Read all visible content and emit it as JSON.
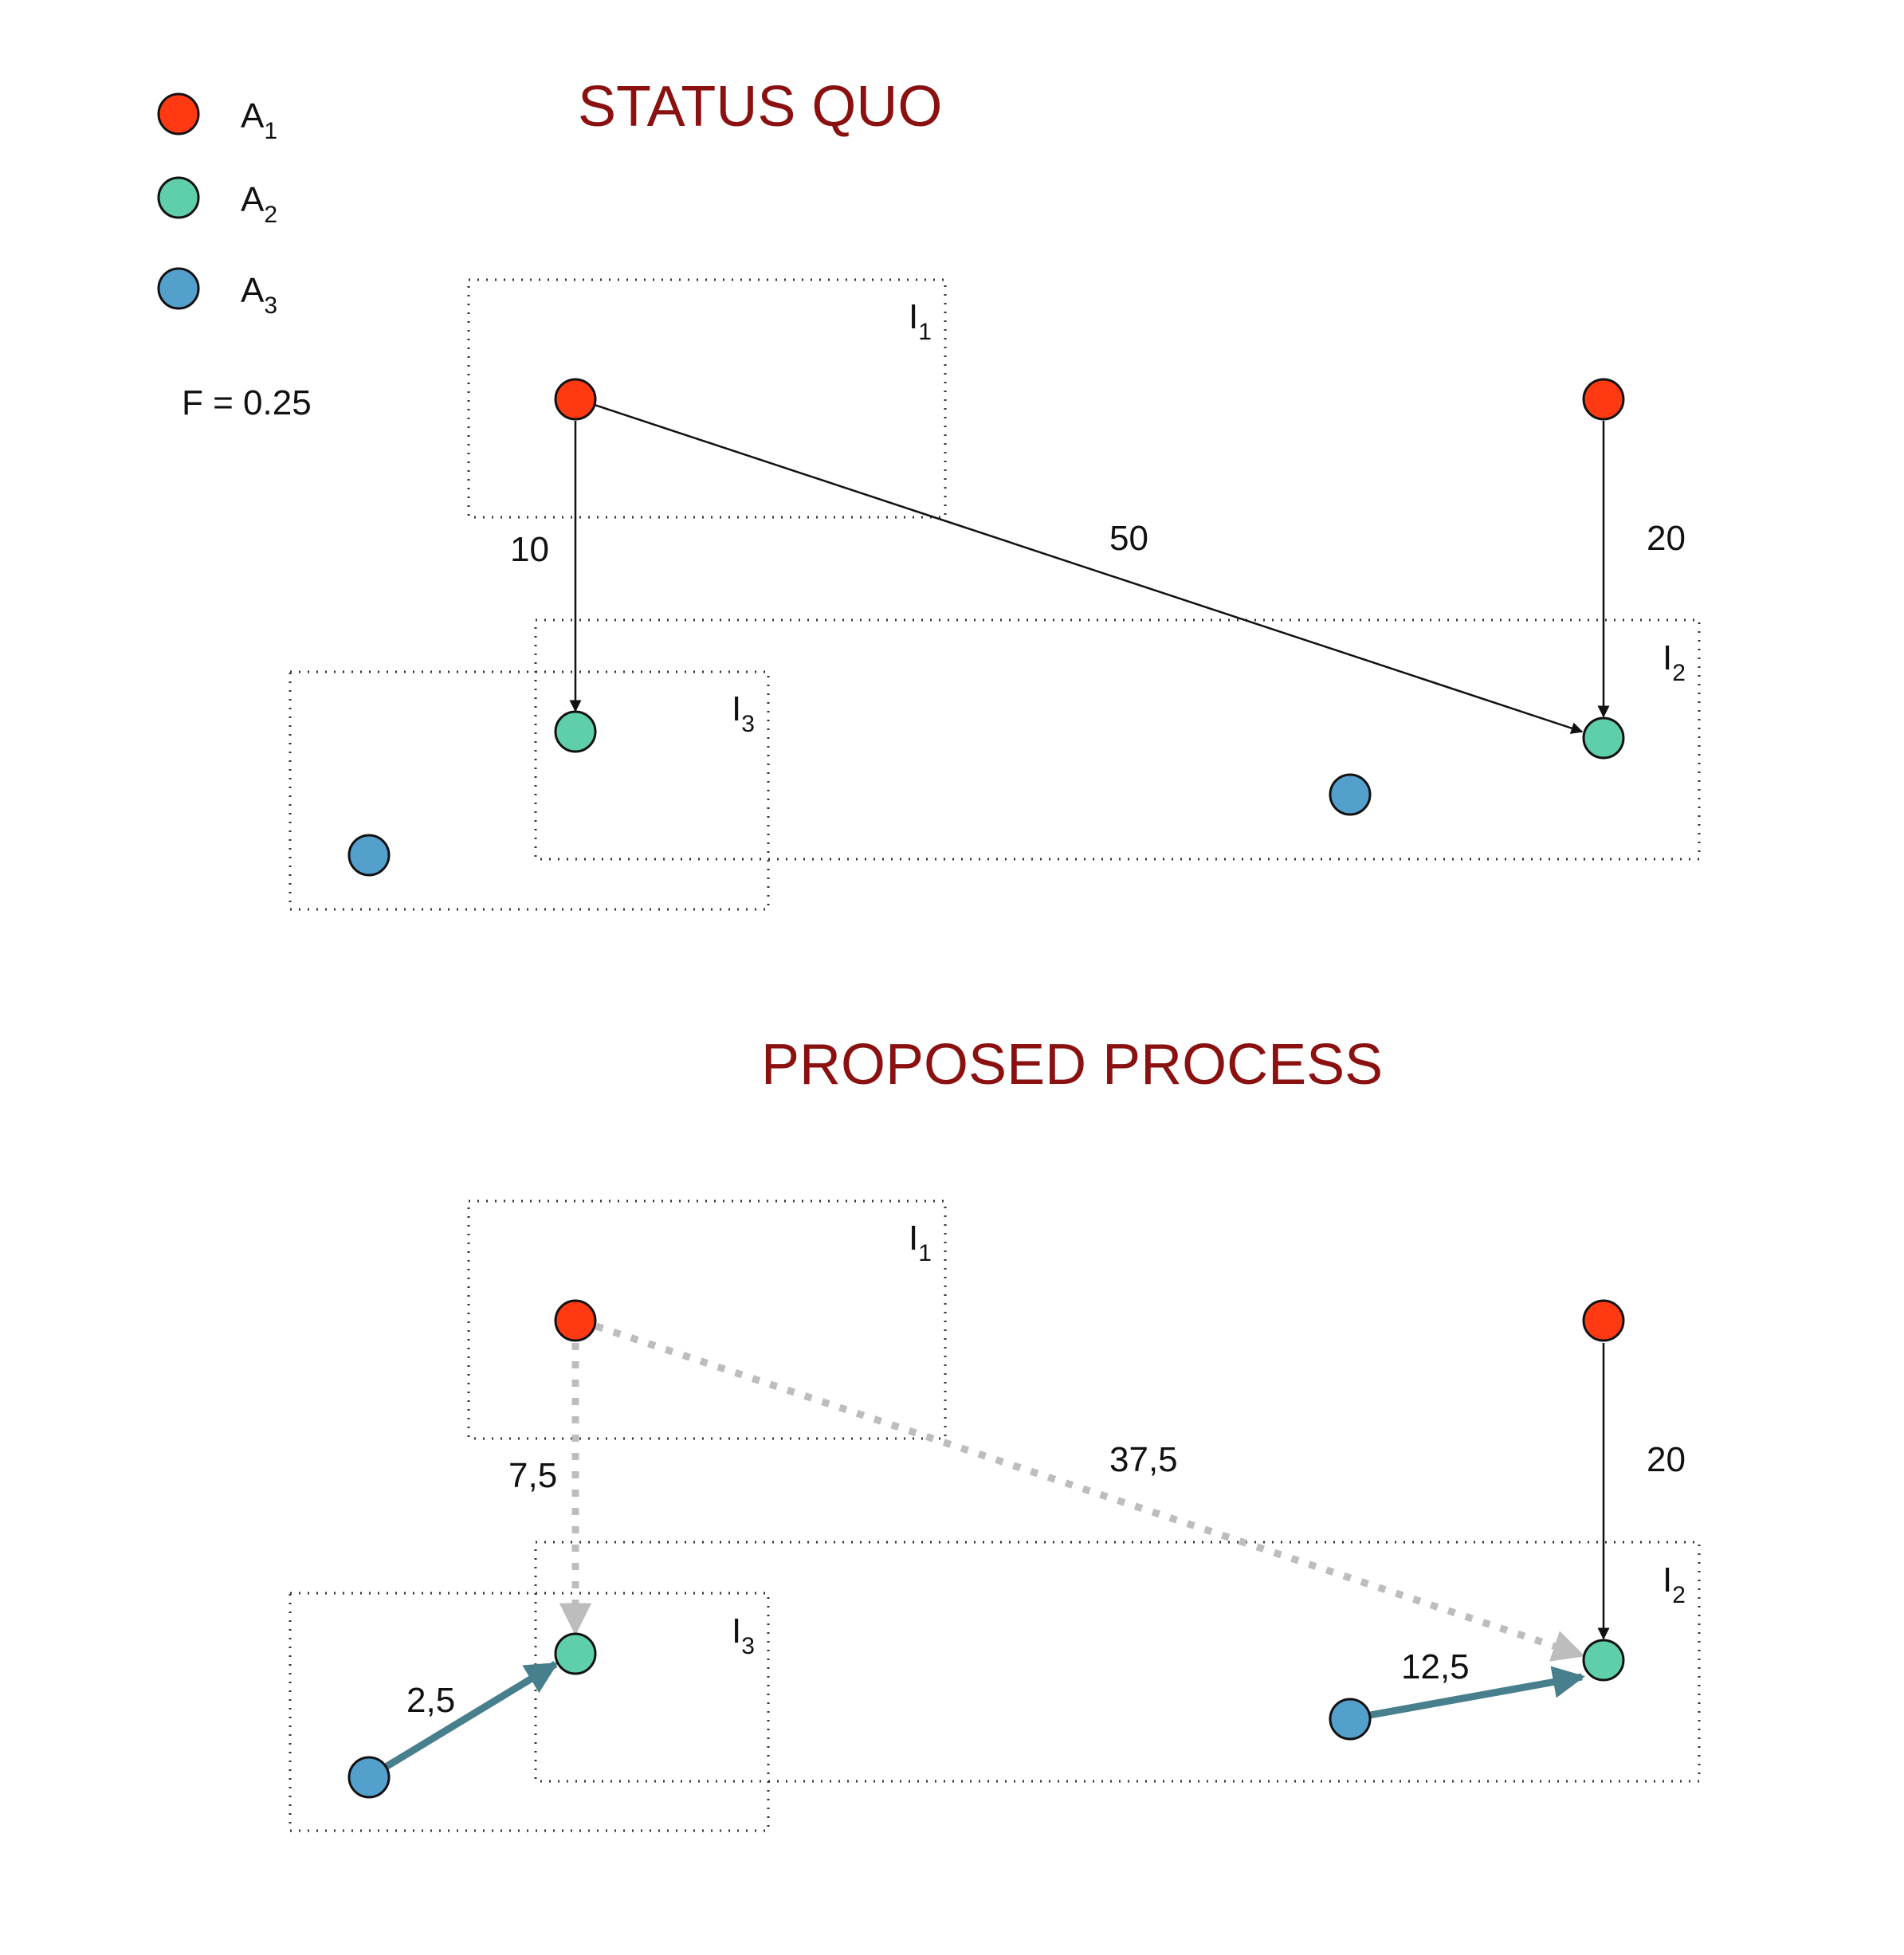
{
  "legend": {
    "items": [
      {
        "base": "A",
        "sub": "1",
        "color": "#ff3a12"
      },
      {
        "base": "A",
        "sub": "2",
        "color": "#5ecfaa"
      },
      {
        "base": "A",
        "sub": "3",
        "color": "#54a0cc"
      }
    ],
    "parameter": "F = 0.25"
  },
  "status_quo": {
    "title": "STATUS QUO",
    "regions": [
      {
        "base": "I",
        "sub": "1"
      },
      {
        "base": "I",
        "sub": "2"
      },
      {
        "base": "I",
        "sub": "3"
      }
    ],
    "flows": [
      {
        "label": "10",
        "from": "A1 (I1)",
        "to": "A2 (I3)"
      },
      {
        "label": "50",
        "from": "A1 (I1)",
        "to": "A2 (I2)"
      },
      {
        "label": "20",
        "from": "A1",
        "to": "A2 (I2)"
      }
    ]
  },
  "proposed": {
    "title": "PROPOSED PROCESS",
    "regions": [
      {
        "base": "I",
        "sub": "1"
      },
      {
        "base": "I",
        "sub": "2"
      },
      {
        "base": "I",
        "sub": "3"
      }
    ],
    "flows": [
      {
        "label": "7,5",
        "from": "A1 (I1)",
        "to": "A2 (I3)",
        "style": "dotted"
      },
      {
        "label": "37,5",
        "from": "A1 (I1)",
        "to": "A2 (I2)",
        "style": "dotted"
      },
      {
        "label": "20",
        "from": "A1",
        "to": "A2 (I2)",
        "style": "solid"
      },
      {
        "label": "2,5",
        "from": "A3",
        "to": "A2 (I3)",
        "style": "bold"
      },
      {
        "label": "12,5",
        "from": "A3",
        "to": "A2 (I2)",
        "style": "bold"
      }
    ]
  },
  "colors": {
    "a1": "#ff3a12",
    "a2": "#5ecfaa",
    "a3": "#54a0cc",
    "bold_arrow": "#477f8c",
    "dotted_arrow": "#bdbdbd",
    "title": "#8b1111"
  }
}
